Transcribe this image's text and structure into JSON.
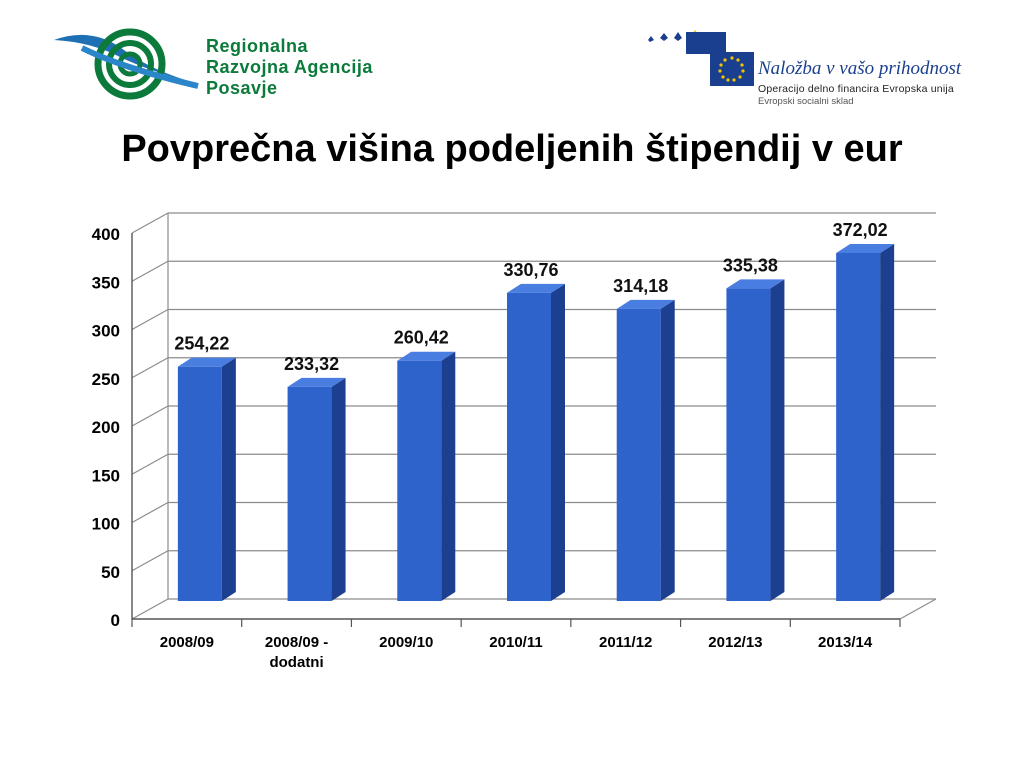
{
  "header": {
    "rra_logo_icon": "green-circles-swoosh-logo",
    "rra_lines": [
      "Regionalna",
      "Razvojna Agencija",
      "Posavje"
    ],
    "eu_flag_icon": "eu-flag-with-stars",
    "eu_slogan": "Naložba v vašo prihodnost",
    "eu_operation": "Operacijo delno financira Evropska unija",
    "eu_fund": "Evropski socialni sklad"
  },
  "title": "Povprečna višina podeljenih štipendij v eur",
  "colors": {
    "bar_front": "#2f63cc",
    "bar_side": "#1d3f8f",
    "bar_top": "#4a7de0",
    "rra_green": "#0b7a3a",
    "eu_blue": "#1b3f8f"
  },
  "chart_data": {
    "type": "bar",
    "categories": [
      "2008/09",
      "2008/09 - dodatni",
      "2009/10",
      "2010/11",
      "2011/12",
      "2012/13",
      "2013/14"
    ],
    "values": [
      254.22,
      233.32,
      260.42,
      330.76,
      314.18,
      335.38,
      372.02
    ],
    "data_labels": [
      "254,22",
      "233,32",
      "260,42",
      "330,76",
      "314,18",
      "335,38",
      "372,02"
    ],
    "yticks": [
      0,
      50,
      100,
      150,
      200,
      250,
      300,
      350,
      400
    ],
    "ylim": [
      0,
      400
    ],
    "grid": true,
    "style": "3d-column"
  }
}
